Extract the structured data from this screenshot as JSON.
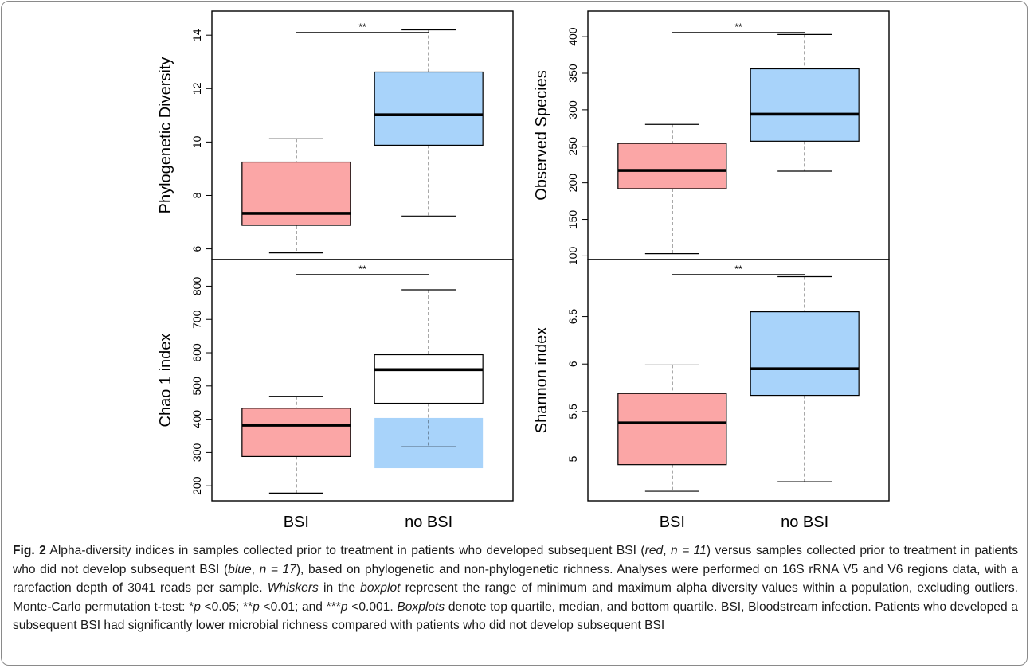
{
  "chart_data": [
    {
      "type": "boxplot",
      "ylabel": "Phylogenetic Diversity",
      "ylim": [
        5.6,
        14.9
      ],
      "yticks": [
        6,
        8,
        10,
        12,
        14
      ],
      "categories": [
        "BSI",
        "no BSI"
      ],
      "boxes": [
        {
          "group": "BSI",
          "color": "#fba6a6",
          "min": 5.85,
          "q1": 6.88,
          "median": 7.33,
          "q3": 9.25,
          "max": 10.12
        },
        {
          "group": "no BSI",
          "color": "#a8d3fa",
          "min": 7.23,
          "q1": 9.88,
          "median": 11.02,
          "q3": 12.62,
          "max": 14.2
        }
      ],
      "significance": "**"
    },
    {
      "type": "boxplot",
      "ylabel": "Observed Species",
      "ylim": [
        95,
        435
      ],
      "yticks": [
        100,
        150,
        200,
        250,
        300,
        350,
        400
      ],
      "categories": [
        "BSI",
        "no BSI"
      ],
      "boxes": [
        {
          "group": "BSI",
          "color": "#fba6a6",
          "min": 103,
          "q1": 192,
          "median": 217,
          "q3": 254,
          "max": 280
        },
        {
          "group": "no BSI",
          "color": "#a8d3fa",
          "min": 216,
          "q1": 257,
          "median": 294,
          "q3": 356,
          "max": 403
        }
      ],
      "significance": "**"
    },
    {
      "type": "boxplot",
      "ylabel": "Chao 1 index",
      "ylim": [
        155,
        880
      ],
      "yticks": [
        200,
        300,
        400,
        500,
        600,
        700,
        800
      ],
      "categories": [
        "BSI",
        "no BSI"
      ],
      "boxes": [
        {
          "group": "BSI",
          "color": "#fba6a6",
          "min": 178,
          "q1": 288,
          "median": 382,
          "q3": 433,
          "max": 469
        },
        {
          "group": "no BSI",
          "color": "#ffffff",
          "min": 317,
          "q1": 448,
          "median": 549,
          "q3": 594,
          "max": 789
        }
      ],
      "shaded_region": {
        "color": "#a8d3fa",
        "from": 253,
        "to": 404
      },
      "significance": "**"
    },
    {
      "type": "boxplot",
      "ylabel": "Shannon index",
      "ylim": [
        4.56,
        7.1
      ],
      "yticks": [
        5.0,
        5.5,
        6.0,
        6.5
      ],
      "categories": [
        "BSI",
        "no BSI"
      ],
      "boxes": [
        {
          "group": "BSI",
          "color": "#fba6a6",
          "min": 4.66,
          "q1": 4.94,
          "median": 5.38,
          "q3": 5.69,
          "max": 5.99
        },
        {
          "group": "no BSI",
          "color": "#a8d3fa",
          "min": 4.76,
          "q1": 5.67,
          "median": 5.95,
          "q3": 6.55,
          "max": 6.92
        }
      ],
      "significance": "**"
    }
  ],
  "caption": {
    "label": "Fig. 2",
    "p1": " Alpha-diversity indices in samples collected prior to treatment in patients who developed subsequent BSI (",
    "red": "red",
    "p2": ", ",
    "n_red": "n = 11",
    "p3": ") versus samples collected prior to treatment in patients who did not develop subsequent BSI (",
    "blue": "blue",
    "p4": ", ",
    "n_blue": "n = 17",
    "p5": "), based on phylogenetic and non-phylogenetic richness. Analyses were performed on 16S rRNA V5 and V6 regions data, with a rarefaction depth of 3041 reads per sample. ",
    "whiskers": "Whiskers",
    "p6": " in the ",
    "boxplot": "boxplot",
    "p7": " represent the range of minimum and maximum alpha diversity values within a population, excluding outliers. Monte-Carlo permutation t-test: *",
    "pa": "p",
    "p8": " <0.05; **",
    "pb": "p",
    "p9": " <0.01; and ***",
    "pc": "p",
    "p10": " <0.001. ",
    "boxplots": "Boxplots",
    "p11": " denote top quartile, median, and bottom quartile. BSI, Bloodstream infection. Patients who developed a subsequent BSI had significantly lower microbial richness compared with patients who did not develop subsequent BSI"
  }
}
